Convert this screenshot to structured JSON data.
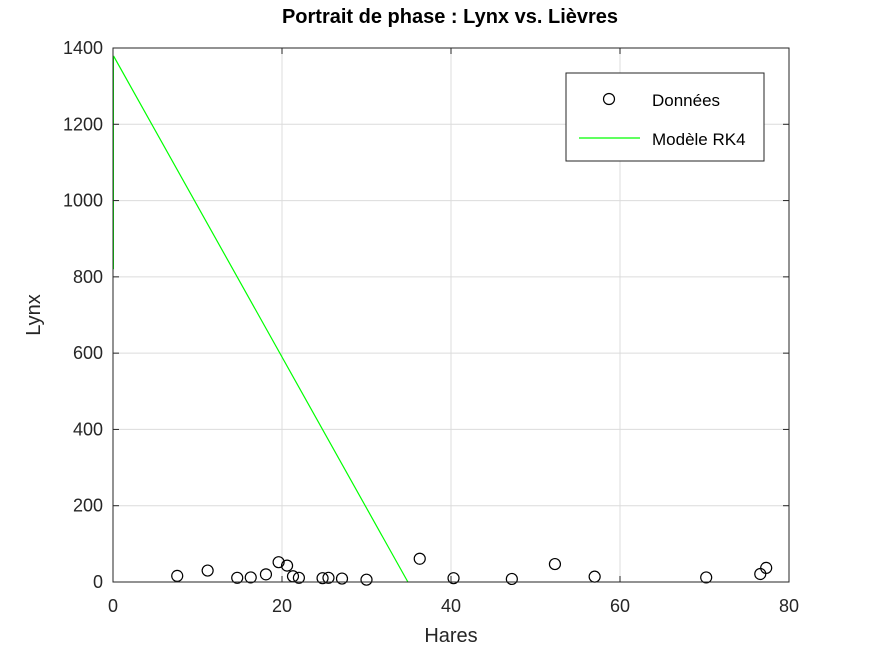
{
  "chart_data": {
    "type": "scatter",
    "title": "Portrait de phase : Lynx vs. Lièvres",
    "xlabel": "Hares",
    "ylabel": "Lynx",
    "xlim": [
      0,
      80
    ],
    "ylim": [
      0,
      1400
    ],
    "xticks": [
      0,
      20,
      40,
      60,
      80
    ],
    "yticks": [
      0,
      200,
      400,
      600,
      800,
      1000,
      1200,
      1400
    ],
    "grid": true,
    "legend_position": "top-right",
    "series": [
      {
        "name": "Données",
        "kind": "markers",
        "marker": "circle",
        "color": "#000000",
        "points": [
          [
            7.6,
            16
          ],
          [
            11.2,
            30
          ],
          [
            14.7,
            11
          ],
          [
            16.3,
            12
          ],
          [
            18.1,
            20
          ],
          [
            19.6,
            52
          ],
          [
            20.6,
            43
          ],
          [
            21.3,
            15
          ],
          [
            22.0,
            11
          ],
          [
            24.8,
            10
          ],
          [
            25.5,
            11
          ],
          [
            27.1,
            9
          ],
          [
            30.0,
            6
          ],
          [
            36.3,
            61
          ],
          [
            40.3,
            10
          ],
          [
            47.2,
            8
          ],
          [
            52.3,
            47
          ],
          [
            57.0,
            14
          ],
          [
            70.2,
            12
          ],
          [
            76.6,
            21
          ],
          [
            77.3,
            37
          ]
        ]
      },
      {
        "name": "Modèle RK4",
        "kind": "line",
        "color": "#00ff00",
        "points": [
          [
            0.05,
            820
          ],
          [
            0.05,
            1378
          ],
          [
            0.1,
            1378
          ],
          [
            34.9,
            0
          ]
        ]
      }
    ]
  }
}
